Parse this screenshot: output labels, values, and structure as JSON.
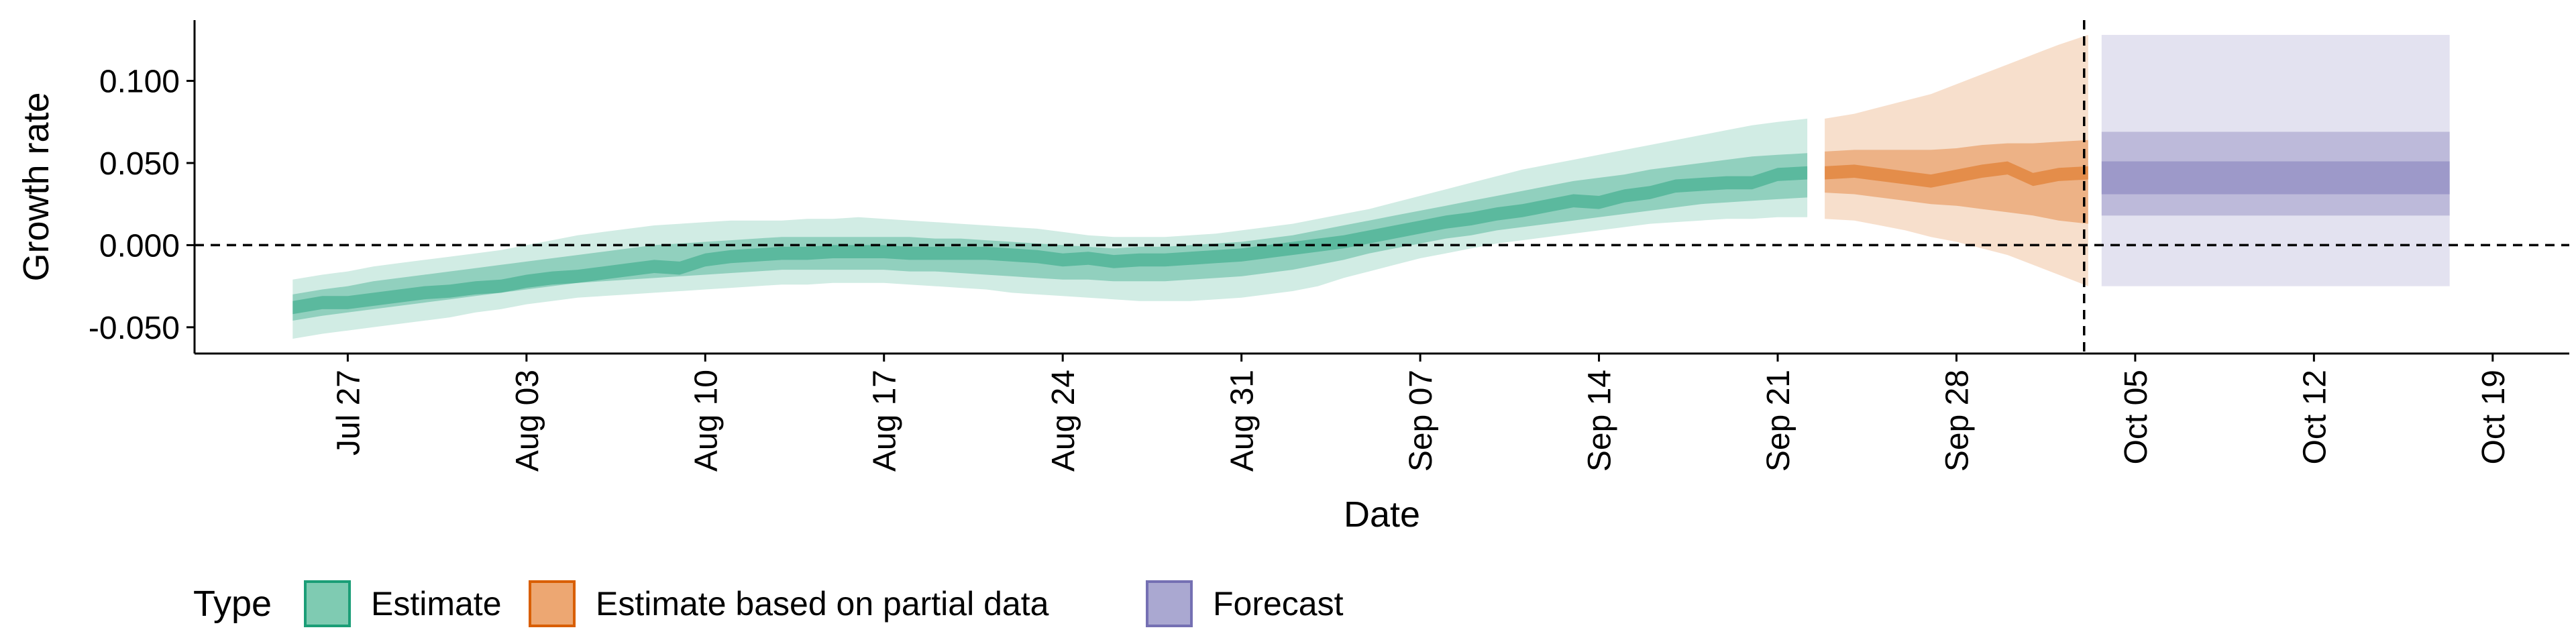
{
  "chart_data": {
    "type": "area",
    "xlabel": "Date",
    "ylabel": "Growth rate",
    "x_ticks": [
      "Jul 27",
      "Aug 03",
      "Aug 10",
      "Aug 17",
      "Aug 24",
      "Aug 31",
      "Sep 07",
      "Sep 14",
      "Sep 21",
      "Sep 28",
      "Oct 05",
      "Oct 12",
      "Oct 19"
    ],
    "y_ticks": [
      "-0.050",
      "0.000",
      "0.050",
      "0.100"
    ],
    "ylim": [
      -0.066,
      0.137
    ],
    "xlim": [
      "2020-07-21",
      "2020-10-22"
    ],
    "reference_lines": {
      "horizontal_y": 0,
      "vertical_date": "2020-10-03"
    },
    "legend": {
      "title": "Type",
      "position": "bottom-left",
      "entries": [
        {
          "label": "Estimate",
          "fill": "#7fcbb2",
          "stroke": "#1b9e77"
        },
        {
          "label": "Estimate based on partial data",
          "fill": "#eda772",
          "stroke": "#d95f02"
        },
        {
          "label": "Forecast",
          "fill": "#aaa8d1",
          "stroke": "#7570b3"
        }
      ]
    },
    "series": [
      {
        "type": "estimate",
        "color": "#1b9e77",
        "dates": [
          "2020-07-25",
          "2020-07-26",
          "2020-07-27",
          "2020-07-28",
          "2020-07-29",
          "2020-07-30",
          "2020-07-31",
          "2020-08-01",
          "2020-08-02",
          "2020-08-03",
          "2020-08-04",
          "2020-08-05",
          "2020-08-06",
          "2020-08-07",
          "2020-08-08",
          "2020-08-09",
          "2020-08-10",
          "2020-08-11",
          "2020-08-12",
          "2020-08-13",
          "2020-08-14",
          "2020-08-15",
          "2020-08-16",
          "2020-08-17",
          "2020-08-18",
          "2020-08-19",
          "2020-08-20",
          "2020-08-21",
          "2020-08-22",
          "2020-08-23",
          "2020-08-24",
          "2020-08-25",
          "2020-08-26",
          "2020-08-27",
          "2020-08-28",
          "2020-08-29",
          "2020-08-30",
          "2020-08-31",
          "2020-09-01",
          "2020-09-02",
          "2020-09-03",
          "2020-09-04",
          "2020-09-05",
          "2020-09-06",
          "2020-09-07",
          "2020-09-08",
          "2020-09-09",
          "2020-09-10",
          "2020-09-11",
          "2020-09-12",
          "2020-09-13",
          "2020-09-14",
          "2020-09-15",
          "2020-09-16",
          "2020-09-17",
          "2020-09-18",
          "2020-09-19",
          "2020-09-20",
          "2020-09-21",
          "2020-09-22"
        ],
        "median": [
          -0.038,
          -0.035,
          -0.035,
          -0.033,
          -0.031,
          -0.029,
          -0.028,
          -0.026,
          -0.025,
          -0.022,
          -0.02,
          -0.019,
          -0.017,
          -0.015,
          -0.013,
          -0.014,
          -0.009,
          -0.007,
          -0.006,
          -0.005,
          -0.005,
          -0.004,
          -0.004,
          -0.004,
          -0.005,
          -0.005,
          -0.005,
          -0.005,
          -0.006,
          -0.007,
          -0.009,
          -0.008,
          -0.01,
          -0.009,
          -0.009,
          -0.008,
          -0.007,
          -0.006,
          -0.004,
          -0.002,
          0.0,
          0.002,
          0.005,
          0.008,
          0.011,
          0.014,
          0.016,
          0.019,
          0.021,
          0.024,
          0.027,
          0.026,
          0.03,
          0.032,
          0.036,
          0.037,
          0.038,
          0.038,
          0.043,
          0.044
        ],
        "lower_90": [
          -0.057,
          -0.054,
          -0.052,
          -0.05,
          -0.048,
          -0.046,
          -0.044,
          -0.041,
          -0.039,
          -0.036,
          -0.034,
          -0.032,
          -0.031,
          -0.03,
          -0.029,
          -0.028,
          -0.027,
          -0.026,
          -0.025,
          -0.024,
          -0.024,
          -0.023,
          -0.023,
          -0.023,
          -0.024,
          -0.025,
          -0.026,
          -0.027,
          -0.029,
          -0.03,
          -0.031,
          -0.032,
          -0.033,
          -0.034,
          -0.034,
          -0.034,
          -0.033,
          -0.032,
          -0.03,
          -0.028,
          -0.025,
          -0.02,
          -0.016,
          -0.012,
          -0.008,
          -0.005,
          -0.002,
          0.001,
          0.003,
          0.005,
          0.007,
          0.009,
          0.011,
          0.013,
          0.014,
          0.015,
          0.016,
          0.016,
          0.017,
          0.017
        ],
        "upper_90": [
          -0.021,
          -0.018,
          -0.016,
          -0.013,
          -0.011,
          -0.009,
          -0.007,
          -0.005,
          -0.003,
          0.0,
          0.003,
          0.006,
          0.008,
          0.01,
          0.012,
          0.013,
          0.014,
          0.015,
          0.015,
          0.015,
          0.016,
          0.016,
          0.017,
          0.016,
          0.015,
          0.014,
          0.013,
          0.012,
          0.011,
          0.01,
          0.008,
          0.006,
          0.005,
          0.005,
          0.005,
          0.006,
          0.007,
          0.009,
          0.011,
          0.013,
          0.016,
          0.019,
          0.022,
          0.026,
          0.03,
          0.034,
          0.038,
          0.042,
          0.046,
          0.049,
          0.052,
          0.055,
          0.058,
          0.061,
          0.064,
          0.067,
          0.07,
          0.073,
          0.075,
          0.077
        ],
        "lower_50": [
          -0.046,
          -0.043,
          -0.041,
          -0.039,
          -0.037,
          -0.035,
          -0.033,
          -0.031,
          -0.029,
          -0.027,
          -0.025,
          -0.023,
          -0.022,
          -0.021,
          -0.02,
          -0.019,
          -0.018,
          -0.017,
          -0.016,
          -0.015,
          -0.015,
          -0.015,
          -0.015,
          -0.015,
          -0.016,
          -0.016,
          -0.017,
          -0.018,
          -0.019,
          -0.02,
          -0.021,
          -0.021,
          -0.022,
          -0.022,
          -0.022,
          -0.021,
          -0.02,
          -0.019,
          -0.017,
          -0.015,
          -0.012,
          -0.009,
          -0.005,
          -0.002,
          0.001,
          0.004,
          0.006,
          0.009,
          0.011,
          0.013,
          0.015,
          0.017,
          0.019,
          0.021,
          0.023,
          0.025,
          0.026,
          0.027,
          0.028,
          0.029
        ],
        "upper_50": [
          -0.03,
          -0.027,
          -0.025,
          -0.022,
          -0.02,
          -0.018,
          -0.016,
          -0.014,
          -0.012,
          -0.01,
          -0.008,
          -0.006,
          -0.004,
          -0.002,
          0.0,
          0.001,
          0.002,
          0.003,
          0.004,
          0.005,
          0.005,
          0.005,
          0.005,
          0.005,
          0.005,
          0.004,
          0.004,
          0.003,
          0.002,
          0.001,
          0.0,
          -0.001,
          -0.002,
          -0.001,
          -0.001,
          0.0,
          0.001,
          0.002,
          0.004,
          0.006,
          0.009,
          0.012,
          0.015,
          0.018,
          0.021,
          0.024,
          0.027,
          0.03,
          0.033,
          0.036,
          0.039,
          0.041,
          0.043,
          0.046,
          0.048,
          0.05,
          0.052,
          0.054,
          0.055,
          0.056
        ]
      },
      {
        "type": "estimate based on partial data",
        "color": "#d95f02",
        "dates": [
          "2020-09-23",
          "2020-09-24",
          "2020-09-25",
          "2020-09-26",
          "2020-09-27",
          "2020-09-28",
          "2020-09-29",
          "2020-09-30",
          "2020-10-01",
          "2020-10-02",
          "2020-10-03"
        ],
        "median": [
          0.044,
          0.045,
          0.043,
          0.041,
          0.039,
          0.042,
          0.045,
          0.047,
          0.04,
          0.043,
          0.044
        ],
        "lower_90": [
          0.016,
          0.015,
          0.012,
          0.009,
          0.005,
          0.002,
          -0.002,
          -0.006,
          -0.012,
          -0.018,
          -0.025
        ],
        "upper_90": [
          0.077,
          0.08,
          0.084,
          0.088,
          0.092,
          0.098,
          0.104,
          0.11,
          0.116,
          0.122,
          0.128
        ],
        "lower_50": [
          0.032,
          0.031,
          0.029,
          0.027,
          0.025,
          0.024,
          0.022,
          0.02,
          0.018,
          0.015,
          0.013
        ],
        "upper_50": [
          0.057,
          0.058,
          0.058,
          0.058,
          0.058,
          0.059,
          0.061,
          0.062,
          0.062,
          0.063,
          0.064
        ]
      },
      {
        "type": "forecast",
        "color": "#7570b3",
        "dates": [
          "2020-10-04",
          "2020-10-17"
        ],
        "median": [
          0.041,
          0.041
        ],
        "lower_90": [
          -0.025,
          -0.025
        ],
        "upper_90": [
          0.128,
          0.128
        ],
        "lower_50": [
          0.018,
          0.018
        ],
        "upper_50": [
          0.069,
          0.069
        ],
        "lower_20": [
          0.031,
          0.031
        ],
        "upper_20": [
          0.051,
          0.051
        ]
      }
    ]
  }
}
